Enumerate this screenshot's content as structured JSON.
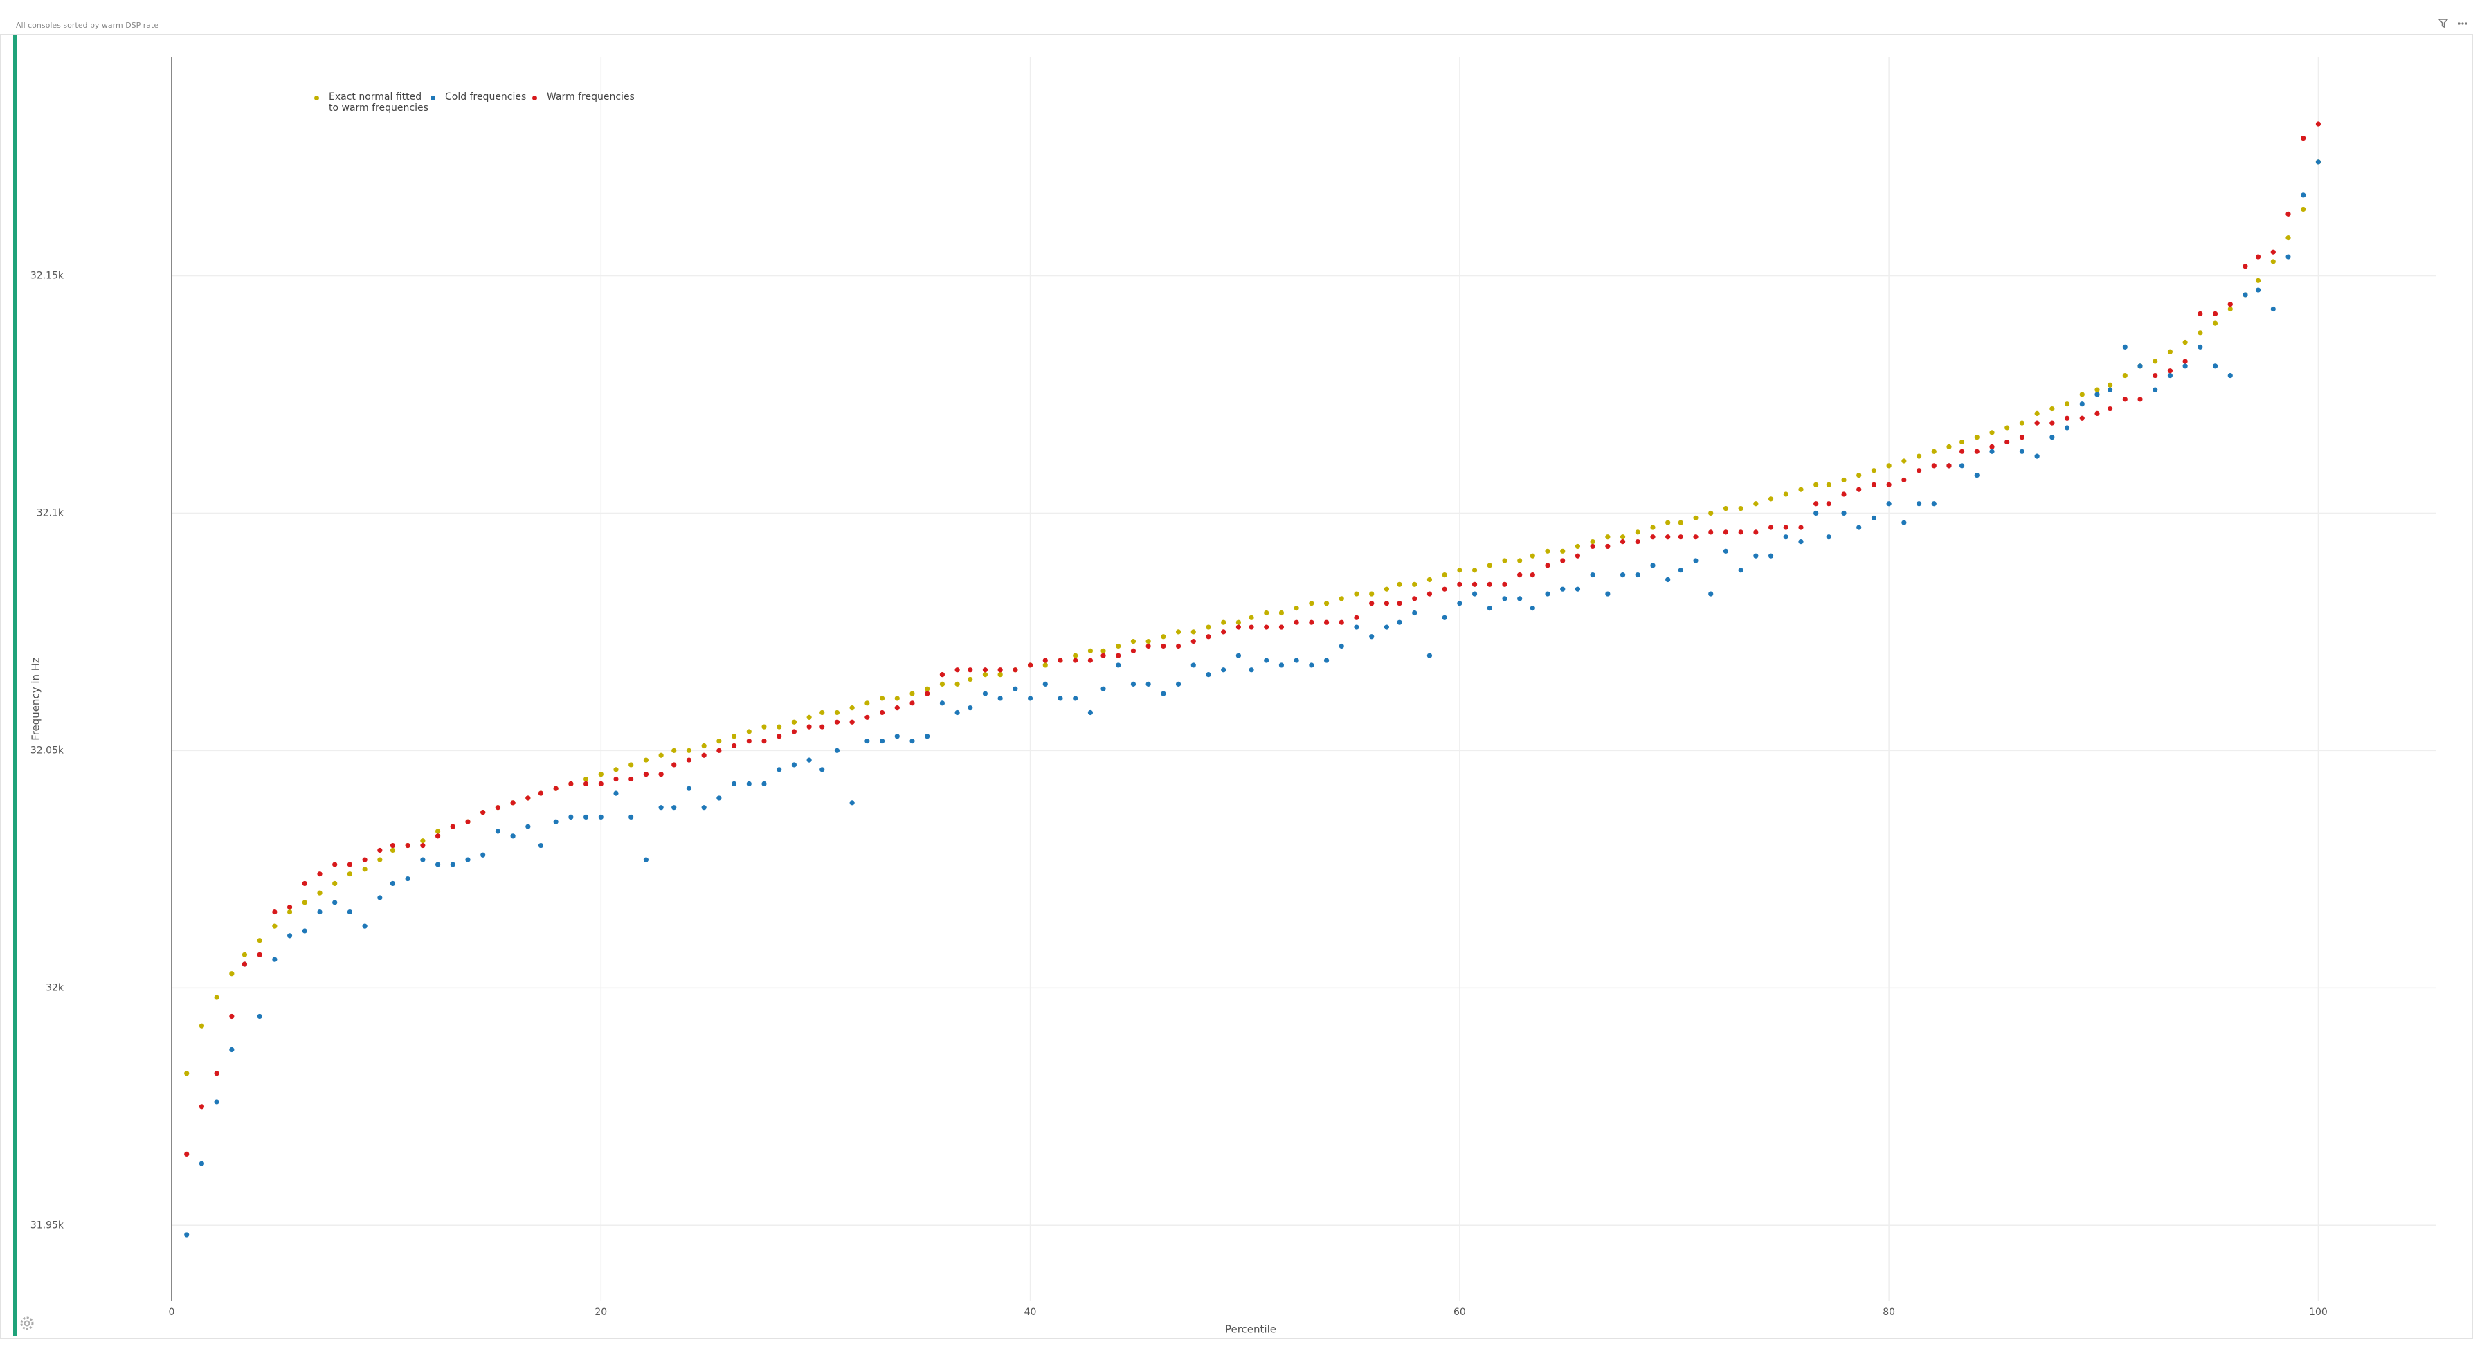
{
  "chart_data": {
    "type": "scatter",
    "title": "All consoles sorted by warm DSP rate",
    "x_label": "Percentile",
    "y_label": "Frequency in Hz",
    "x": [
      0.7,
      1.4,
      2.1,
      2.8,
      3.4,
      4.1,
      4.8,
      5.5,
      6.2,
      6.9,
      7.6,
      8.3,
      9.0,
      9.7,
      10.3,
      11.0,
      11.7,
      12.4,
      13.1,
      13.8,
      14.5,
      15.2,
      15.9,
      16.6,
      17.2,
      17.9,
      18.6,
      19.3,
      20.0,
      20.7,
      21.4,
      22.1,
      22.8,
      23.4,
      24.1,
      24.8,
      25.5,
      26.2,
      26.9,
      27.6,
      28.3,
      29.0,
      29.7,
      30.3,
      31.0,
      31.7,
      32.4,
      33.1,
      33.8,
      34.5,
      35.2,
      35.9,
      36.6,
      37.2,
      37.9,
      38.6,
      39.3,
      40.0,
      40.7,
      41.4,
      42.1,
      42.8,
      43.4,
      44.1,
      44.8,
      45.5,
      46.2,
      46.9,
      47.6,
      48.3,
      49.0,
      49.7,
      50.3,
      51.0,
      51.7,
      52.4,
      53.1,
      53.8,
      54.5,
      55.2,
      55.9,
      56.6,
      57.2,
      57.9,
      58.6,
      59.3,
      60.0,
      60.7,
      61.4,
      62.1,
      62.8,
      63.4,
      64.1,
      64.8,
      65.5,
      66.2,
      66.9,
      67.6,
      68.3,
      69.0,
      69.7,
      70.3,
      71.0,
      71.7,
      72.4,
      73.1,
      73.8,
      74.5,
      75.2,
      75.9,
      76.6,
      77.2,
      77.9,
      78.6,
      79.3,
      80.0,
      80.7,
      81.4,
      82.1,
      82.8,
      83.4,
      84.1,
      84.8,
      85.5,
      86.2,
      86.9,
      87.6,
      88.3,
      89.0,
      89.7,
      90.3,
      91.0,
      91.7,
      92.4,
      93.1,
      93.8,
      94.5,
      95.2,
      95.9,
      96.6,
      97.2,
      97.9,
      98.6,
      99.3,
      100.0
    ],
    "series": [
      {
        "name": "Exact normal fitted\nto warm frequencies",
        "color": "#c2b000",
        "values": [
          31982,
          31992,
          31998,
          32003,
          32007,
          32010,
          32013,
          32016,
          32018,
          32020,
          32022,
          32024,
          32025,
          32027,
          32029,
          32030,
          32031,
          32033,
          32034,
          32035,
          32037,
          32038,
          32039,
          32040,
          32041,
          32042,
          32043,
          32044,
          32045,
          32046,
          32047,
          32048,
          32049,
          32050,
          32050,
          32051,
          32052,
          32053,
          32054,
          32055,
          32055,
          32056,
          32057,
          32058,
          32058,
          32059,
          32060,
          32061,
          32061,
          32062,
          32063,
          32064,
          32064,
          32065,
          32066,
          32066,
          32067,
          32068,
          32068,
          32069,
          32070,
          32071,
          32071,
          32072,
          32073,
          32073,
          32074,
          32075,
          32075,
          32076,
          32077,
          32077,
          32078,
          32079,
          32079,
          32080,
          32081,
          32081,
          32082,
          32083,
          32083,
          32084,
          32085,
          32085,
          32086,
          32087,
          32088,
          32088,
          32089,
          32090,
          32090,
          32091,
          32092,
          32092,
          32093,
          32094,
          32095,
          32095,
          32096,
          32097,
          32098,
          32098,
          32099,
          32100,
          32101,
          32101,
          32102,
          32103,
          32104,
          32105,
          32106,
          32106,
          32107,
          32108,
          32109,
          32110,
          32111,
          32112,
          32113,
          32114,
          32115,
          32116,
          32117,
          32118,
          32119,
          32121,
          32122,
          32123,
          32125,
          32126,
          32127,
          32129,
          32131,
          32132,
          32134,
          32136,
          32138,
          32140,
          32143,
          32146,
          32149,
          32153,
          32158,
          32164,
          32174
        ]
      },
      {
        "name": "Cold frequencies",
        "color": "#1f78b8",
        "values": [
          31948,
          31963,
          31976,
          31987,
          32005,
          31994,
          32006,
          32011,
          32012,
          32016,
          32018,
          32016,
          32013,
          32019,
          32022,
          32023,
          32027,
          32026,
          32026,
          32027,
          32028,
          32033,
          32032,
          32034,
          32030,
          32035,
          32036,
          32036,
          32036,
          32041,
          32036,
          32027,
          32038,
          32038,
          32042,
          32038,
          32040,
          32043,
          32043,
          32043,
          32046,
          32047,
          32048,
          32046,
          32050,
          32039,
          32052,
          32052,
          32053,
          32052,
          32053,
          32060,
          32058,
          32059,
          32062,
          32061,
          32063,
          32061,
          32064,
          32061,
          32061,
          32058,
          32063,
          32068,
          32064,
          32064,
          32062,
          32064,
          32068,
          32066,
          32067,
          32070,
          32067,
          32069,
          32068,
          32069,
          32068,
          32069,
          32072,
          32076,
          32074,
          32076,
          32077,
          32079,
          32070,
          32078,
          32081,
          32083,
          32080,
          32082,
          32082,
          32080,
          32083,
          32084,
          32084,
          32087,
          32083,
          32087,
          32087,
          32089,
          32086,
          32088,
          32090,
          32083,
          32092,
          32088,
          32091,
          32091,
          32095,
          32094,
          32100,
          32095,
          32100,
          32097,
          32099,
          32102,
          32098,
          32102,
          32102,
          32110,
          32110,
          32108,
          32113,
          32115,
          32113,
          32112,
          32116,
          32118,
          32123,
          32125,
          32126,
          32135,
          32131,
          32126,
          32129,
          32131,
          32135,
          32131,
          32129,
          32146,
          32147,
          32143,
          32154,
          32167,
          32174
        ]
      },
      {
        "name": "Warm frequencies",
        "color": "#d7191c",
        "values": [
          31965,
          31975,
          31982,
          31994,
          32005,
          32007,
          32016,
          32017,
          32022,
          32024,
          32026,
          32026,
          32027,
          32029,
          32030,
          32030,
          32030,
          32032,
          32034,
          32035,
          32037,
          32038,
          32039,
          32040,
          32041,
          32042,
          32043,
          32043,
          32043,
          32044,
          32044,
          32045,
          32045,
          32047,
          32048,
          32049,
          32050,
          32051,
          32052,
          32052,
          32053,
          32054,
          32055,
          32055,
          32056,
          32056,
          32057,
          32058,
          32059,
          32060,
          32062,
          32066,
          32067,
          32067,
          32067,
          32067,
          32067,
          32068,
          32069,
          32069,
          32069,
          32069,
          32070,
          32070,
          32071,
          32072,
          32072,
          32072,
          32073,
          32074,
          32075,
          32076,
          32076,
          32076,
          32076,
          32077,
          32077,
          32077,
          32077,
          32078,
          32081,
          32081,
          32081,
          32082,
          32083,
          32084,
          32085,
          32085,
          32085,
          32085,
          32087,
          32087,
          32089,
          32090,
          32091,
          32093,
          32093,
          32094,
          32094,
          32095,
          32095,
          32095,
          32095,
          32096,
          32096,
          32096,
          32096,
          32097,
          32097,
          32097,
          32102,
          32102,
          32104,
          32105,
          32106,
          32106,
          32107,
          32109,
          32110,
          32110,
          32113,
          32113,
          32114,
          32115,
          32116,
          32119,
          32119,
          32120,
          32120,
          32121,
          32122,
          32124,
          32124,
          32129,
          32130,
          32132,
          32142,
          32142,
          32144,
          32152,
          32154,
          32155,
          32163,
          32179,
          32182
        ]
      }
    ],
    "xlim": [
      0,
      105.5
    ],
    "ylim": [
      31934,
      32196
    ],
    "xticks": [
      0,
      20,
      40,
      60,
      80,
      100
    ],
    "yticks": [
      {
        "value": 31950,
        "label": "31.95k"
      },
      {
        "value": 32000,
        "label": "32k"
      },
      {
        "value": 32050,
        "label": "32.05k"
      },
      {
        "value": 32100,
        "label": "32.1k"
      },
      {
        "value": 32150,
        "label": "32.15k"
      }
    ],
    "grid": true
  }
}
